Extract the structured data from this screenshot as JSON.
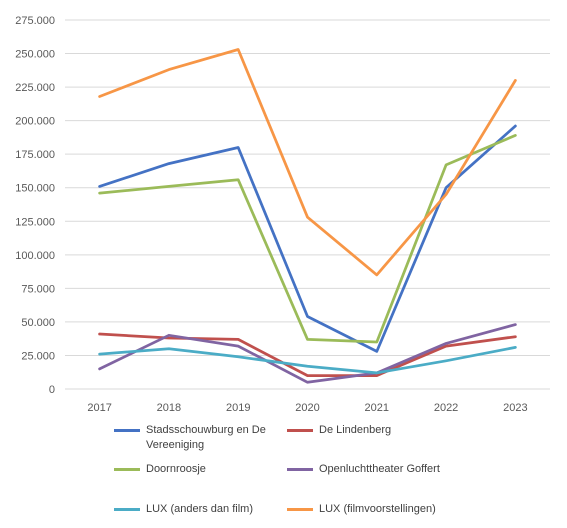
{
  "chart_data": {
    "type": "line",
    "title": "",
    "xlabel": "",
    "ylabel": "",
    "x": [
      "2017",
      "2018",
      "2019",
      "2020",
      "2021",
      "2022",
      "2023"
    ],
    "ylim": [
      0,
      275000
    ],
    "yticks": [
      "0",
      "25.000",
      "50.000",
      "75.000",
      "100.000",
      "125.000",
      "150.000",
      "175.000",
      "200.000",
      "225.000",
      "250.000",
      "275.000"
    ],
    "grid": "horizontal",
    "legend_position": "bottom",
    "series": [
      {
        "name": "Stadsschouwburg en De Vereeniging",
        "color": "#4472C4",
        "values": [
          151000,
          168000,
          180000,
          54000,
          28000,
          150000,
          196000
        ]
      },
      {
        "name": "De Lindenberg",
        "color": "#C0504D",
        "values": [
          41000,
          38000,
          37000,
          10000,
          10000,
          32000,
          39000
        ]
      },
      {
        "name": "Doornroosje",
        "color": "#9BBB59",
        "values": [
          146000,
          151000,
          156000,
          37000,
          35000,
          167000,
          189000
        ]
      },
      {
        "name": "Openluchttheater Goffert",
        "color": "#8064A2",
        "values": [
          15000,
          40000,
          32000,
          5000,
          12000,
          34000,
          48000
        ]
      },
      {
        "name": "LUX (anders dan film)",
        "color": "#4BACC6",
        "values": [
          26000,
          30000,
          24000,
          17000,
          12000,
          21000,
          31000
        ]
      },
      {
        "name": "LUX (filmvoorstellingen)",
        "color": "#F79646",
        "values": [
          218000,
          238000,
          253000,
          128000,
          85000,
          145000,
          230000
        ]
      }
    ]
  }
}
